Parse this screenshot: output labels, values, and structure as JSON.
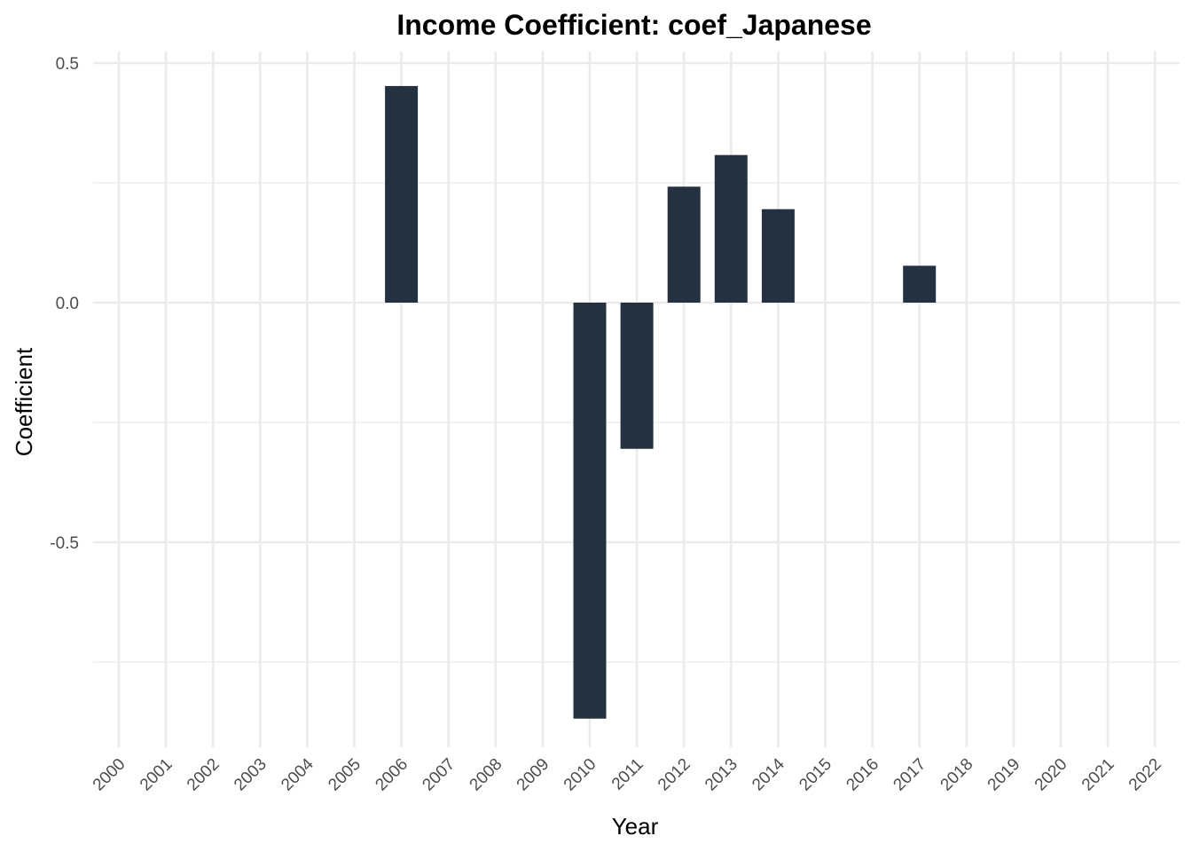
{
  "chart_data": {
    "type": "bar",
    "title": "Income Coefficient: coef_Japanese",
    "xlabel": "Year",
    "ylabel": "Coefficient",
    "categories": [
      "2000",
      "2001",
      "2002",
      "2003",
      "2004",
      "2005",
      "2006",
      "2007",
      "2008",
      "2009",
      "2010",
      "2011",
      "2012",
      "2013",
      "2014",
      "2015",
      "2016",
      "2017",
      "2018",
      "2019",
      "2020",
      "2021",
      "2022"
    ],
    "values": [
      null,
      null,
      null,
      null,
      null,
      null,
      0.452,
      null,
      null,
      null,
      -0.868,
      -0.305,
      0.242,
      0.308,
      0.195,
      null,
      null,
      0.077,
      null,
      null,
      null,
      null,
      null
    ],
    "ylim": [
      -0.93,
      0.52
    ],
    "yticks": [
      0.5,
      0.0,
      -0.5
    ],
    "ytick_labels": [
      "0.5",
      "0.0",
      "-0.5"
    ],
    "grid": true,
    "bar_color": "#233140"
  }
}
